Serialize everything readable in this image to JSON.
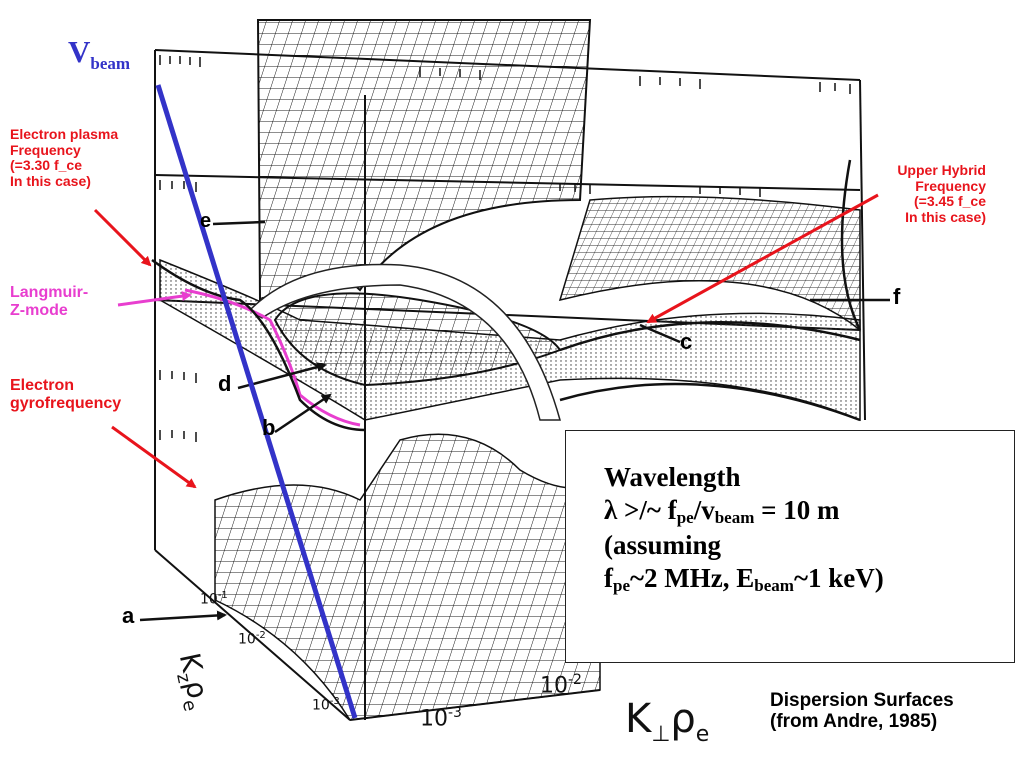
{
  "beam_label": {
    "main": "V",
    "sub": "beam"
  },
  "annotations": {
    "plasma": [
      "Electron plasma",
      "Frequency",
      "(=3.30 f_ce",
      "In this case)"
    ],
    "upper_hybrid": [
      "Upper Hybrid",
      "Frequency",
      "(=3.45 f_ce",
      "In this case)"
    ],
    "langmuir": [
      "Langmuir-",
      "Z-mode"
    ],
    "gyro": [
      "Electron",
      "gyrofrequency"
    ]
  },
  "surface_letters": {
    "a": "a",
    "b": "b",
    "c": "c",
    "d": "d",
    "e": "e",
    "f": "f"
  },
  "axes": {
    "kz": {
      "label": "K",
      "sub": "z",
      "rho": "ρ",
      "rho_sub": "e",
      "ticks": [
        "10",
        "10",
        "10"
      ],
      "exps": [
        "-1",
        "-2",
        "-3"
      ]
    },
    "kperp": {
      "label": "K",
      "sub": "⊥",
      "rho": "ρ",
      "rho_sub": "e",
      "ticks": [
        "10",
        "10"
      ],
      "exps": [
        "-3",
        "-2"
      ]
    }
  },
  "panel": {
    "line1": "Wavelength",
    "line2_a": "λ >/~ f",
    "line2_sub1": "pe",
    "line2_b": "/v",
    "line2_sub2": "beam",
    "line2_c": " = 10 m",
    "line3": "(assuming",
    "line4_a": "f",
    "line4_sub1": "pe",
    "line4_b": "~2 MHz, E",
    "line4_sub2": "beam",
    "line4_c": "~1 keV)"
  },
  "caption": [
    "Dispersion Surfaces",
    "(from Andre, 1985)"
  ],
  "colors": {
    "beam": "#3333c8",
    "annotation": "#e8141c",
    "langmuir": "#e83ecf",
    "ink": "#111111"
  }
}
